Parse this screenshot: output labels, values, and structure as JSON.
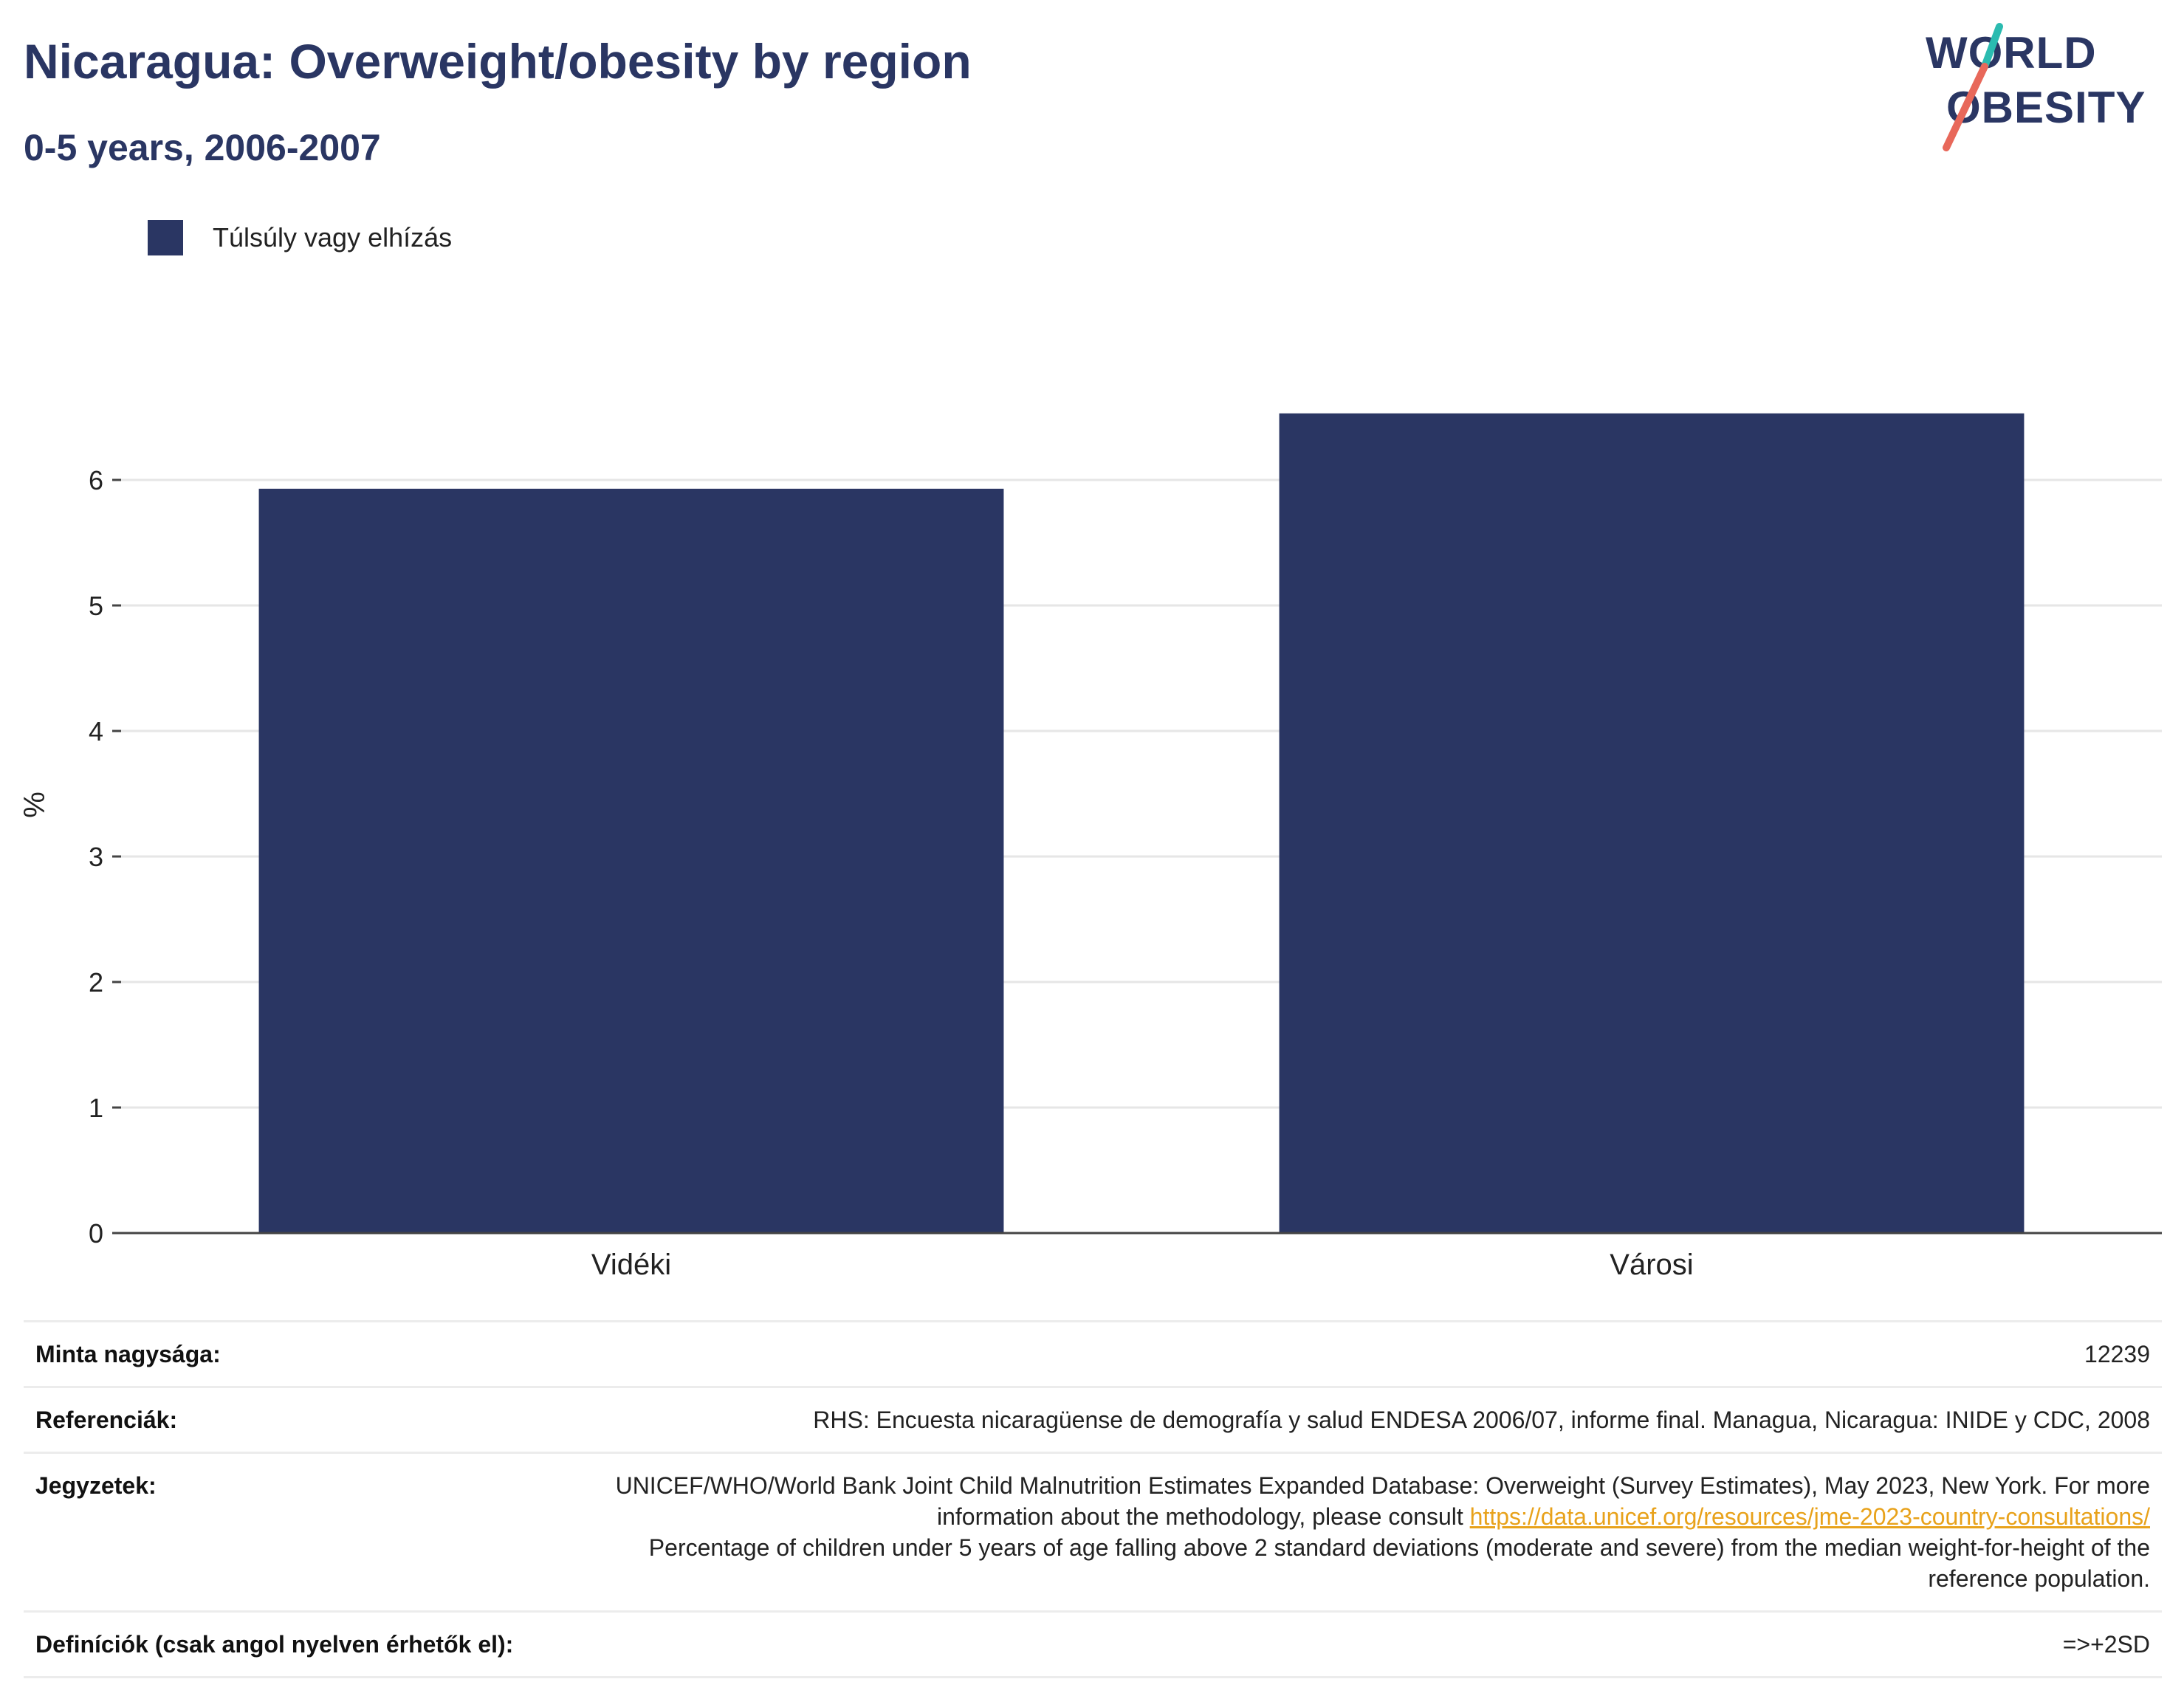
{
  "header": {
    "title": "Nicaragua: Overweight/obesity by region",
    "subtitle": "0-5 years, 2006-2007"
  },
  "logo": {
    "line1": "WORLD",
    "line2": "OBESITY",
    "accent_teal": "#2bbbb0",
    "accent_coral": "#e8685a"
  },
  "legend": {
    "label": "Túlsúly vagy elhízás",
    "color": "#2a3663"
  },
  "chart_data": {
    "type": "bar",
    "categories": [
      "Vidéki",
      "Városi"
    ],
    "series": [
      {
        "name": "Túlsúly vagy elhízás",
        "values": [
          5.93,
          6.53
        ],
        "color": "#2a3663"
      }
    ],
    "ylabel": "%",
    "xlabel": "",
    "ylim": [
      0,
      7
    ],
    "yticks": [
      0,
      1,
      2,
      3,
      4,
      5,
      6
    ],
    "grid": true,
    "legend_position": "top-left"
  },
  "meta": {
    "sample_label": "Minta nagysága:",
    "sample_value": "12239",
    "refs_label": "Referenciák:",
    "refs_value": "RHS: Encuesta nicaragüense de demografía y salud ENDESA 2006/07, informe final. Managua, Nicaragua: INIDE y CDC, 2008",
    "notes_label": "Jegyzetek:",
    "notes_text1": "UNICEF/WHO/World Bank Joint Child Malnutrition Estimates Expanded Database: Overweight (Survey Estimates), May 2023, New York. For more information about the methodology, please consult ",
    "notes_link": "https://data.unicef.org/resources/jme-2023-country-consultations/",
    "notes_text2": "Percentage of children under 5 years of age falling above 2 standard deviations (moderate and severe) from the median weight-for-height of the reference population.",
    "defs_label": "Definíciók (csak angol nyelven érhetők el):",
    "defs_value": "=>+2SD"
  }
}
